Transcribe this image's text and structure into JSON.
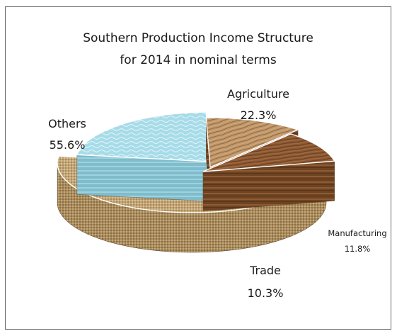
{
  "chart_data": {
    "type": "pie",
    "style": "3D exploded pie with textured slices",
    "title": [
      "Southern Production Income Structure",
      "for 2014 in nominal terms"
    ],
    "slices": [
      {
        "name": "Agriculture",
        "value": 22.3,
        "label": "22.3%",
        "color": "#9fd6e4",
        "texture": "water"
      },
      {
        "name": "Manufacturing",
        "value": 11.8,
        "label": "11.8%",
        "color": "#b98a5e",
        "texture": "light wood"
      },
      {
        "name": "Trade",
        "value": 10.3,
        "label": "10.3%",
        "color": "#8a5530",
        "texture": "dark wood"
      },
      {
        "name": "Others",
        "value": 55.6,
        "label": "55.6%",
        "color": "#c2a478",
        "texture": "burlap"
      }
    ],
    "legend": "none",
    "data_labels": "outside slices"
  },
  "colors": {
    "border": "#6b6b6b",
    "text": "#1a1a1a"
  }
}
